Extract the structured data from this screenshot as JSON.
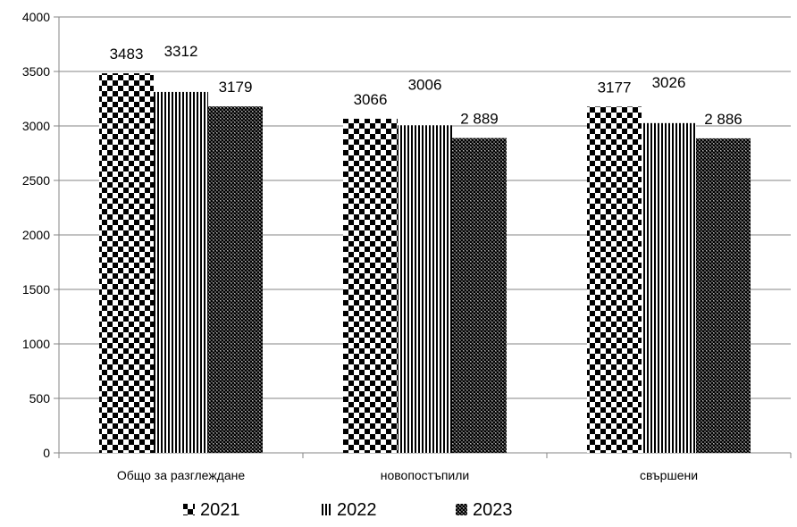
{
  "chart_data": {
    "type": "bar",
    "categories": [
      "Общо за разглеждане",
      "новопостъпили",
      "свършени"
    ],
    "series": [
      {
        "name": "2021",
        "values": [
          3483,
          3066,
          3177
        ],
        "labels": [
          "3483",
          "3066",
          "3177"
        ],
        "pattern": "checker"
      },
      {
        "name": "2022",
        "values": [
          3312,
          3006,
          3026
        ],
        "labels": [
          "3312",
          "3006",
          "3026"
        ],
        "pattern": "vertical-stripes"
      },
      {
        "name": "2023",
        "values": [
          3179,
          2889,
          2886
        ],
        "labels": [
          "3179",
          "2 889",
          "2 886"
        ],
        "pattern": "dense-checker"
      }
    ],
    "yticks": [
      0,
      500,
      1000,
      1500,
      2000,
      2500,
      3000,
      3500,
      4000
    ],
    "ylim": [
      0,
      4000
    ],
    "grid": true,
    "legend_position": "bottom",
    "title": "",
    "xlabel": "",
    "ylabel": ""
  },
  "colors": {
    "bar_fill": "#000000",
    "bar_background": "#ffffff",
    "axis": "#868686",
    "grid": "#868686"
  }
}
